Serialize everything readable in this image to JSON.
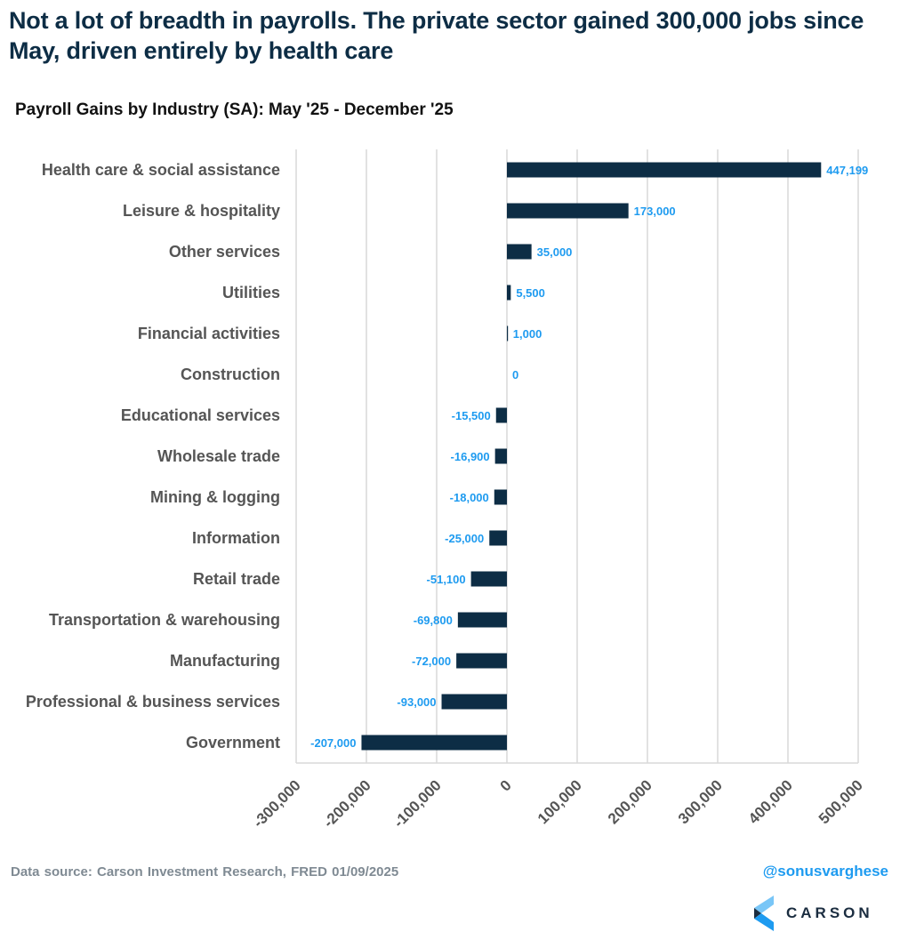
{
  "header": {
    "title": "Not a lot of breadth in payrolls. The private sector gained 300,000 jobs since May, driven entirely by health care",
    "subtitle": "Payroll Gains by Industry (SA): May '25 - December '25"
  },
  "chart_data": {
    "type": "bar",
    "orientation": "horizontal",
    "title": "Payroll Gains by Industry (SA): May '25 - December '25",
    "xlabel": "",
    "ylabel": "",
    "xlim": [
      -300000,
      500000
    ],
    "xticks": [
      -300000,
      -200000,
      -100000,
      0,
      100000,
      200000,
      300000,
      400000,
      500000
    ],
    "xtick_labels": [
      "-300,000",
      "-200,000",
      "-100,000",
      "0",
      "100,000",
      "200,000",
      "300,000",
      "400,000",
      "500,000"
    ],
    "grid": "vertical",
    "legend": "none",
    "categories": [
      "Health care & social assistance",
      "Leisure & hospitality",
      "Other services",
      "Utilities",
      "Financial activities",
      "Construction",
      "Educational services",
      "Wholesale trade",
      "Mining & logging",
      "Information",
      "Retail trade",
      "Transportation & warehousing",
      "Manufacturing",
      "Professional & business services",
      "Government"
    ],
    "values": [
      447199,
      173000,
      35000,
      5500,
      1000,
      0,
      -15500,
      -16900,
      -18000,
      -25000,
      -51100,
      -69800,
      -72000,
      -93000,
      -207000
    ],
    "data_labels": [
      "447,199",
      "173,000",
      "35,000",
      "5,500",
      "1,000",
      "0",
      "-15,500",
      "-16,900",
      "-18,000",
      "-25,000",
      "-51,100",
      "-69,800",
      "-72,000",
      "-93,000",
      "-207,000"
    ],
    "colors": {
      "bar": "#0d2d45",
      "data_label": "#1e9bf0",
      "grid": "#d9d9d9",
      "axis_text": "#555555"
    }
  },
  "footer": {
    "source": "Data source: Carson Investment Research, FRED   01/09/2025",
    "handle": "@sonusvarghese",
    "logo_text": "CARSON"
  }
}
